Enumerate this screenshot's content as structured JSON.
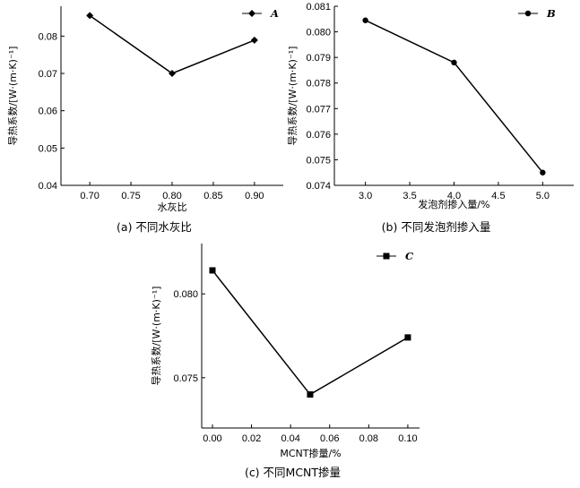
{
  "chart_data": [
    {
      "type": "line",
      "marker": "diamond",
      "x": [
        0.7,
        0.8,
        0.9
      ],
      "series": [
        {
          "name": "A",
          "values": [
            0.0855,
            0.07,
            0.0789
          ]
        }
      ],
      "xlabel": "水灰比",
      "ylabel": "导热系数/[W·(m·K)⁻¹]",
      "xticks": [
        "0.70",
        "0.75",
        "0.80",
        "0.85",
        "0.90"
      ],
      "yticks": [
        "0.04",
        "0.05",
        "0.06",
        "0.07",
        "0.08"
      ],
      "xlim": [
        0.665,
        0.935
      ],
      "ylim": [
        0.04,
        0.088
      ],
      "caption": "(a) 不同水灰比",
      "legend": "top-right"
    },
    {
      "type": "line",
      "marker": "circle",
      "x": [
        3.0,
        4.0,
        5.0
      ],
      "series": [
        {
          "name": "B",
          "values": [
            0.08045,
            0.0788,
            0.0745
          ]
        }
      ],
      "xlabel": "发泡剂掺入量/%",
      "ylabel": "导热系数/[W·(m·K)⁻¹]",
      "xticks": [
        "3.0",
        "3.5",
        "4.0",
        "4.5",
        "5.0"
      ],
      "yticks": [
        "0.074",
        "0.075",
        "0.076",
        "0.077",
        "0.078",
        "0.079",
        "0.080",
        "0.081"
      ],
      "xlim": [
        2.65,
        5.35
      ],
      "ylim": [
        0.074,
        0.081
      ],
      "caption": "(b) 不同发泡剂掺入量",
      "legend": "top-right"
    },
    {
      "type": "line",
      "marker": "square",
      "x": [
        0.0,
        0.05,
        0.1
      ],
      "series": [
        {
          "name": "C",
          "values": [
            0.0814,
            0.074,
            0.0774
          ]
        }
      ],
      "xlabel": "MCNT掺量/%",
      "ylabel": "导热系数/[W·(m·K)⁻¹]",
      "xticks": [
        "0.00",
        "0.02",
        "0.04",
        "0.06",
        "0.08",
        "0.10"
      ],
      "yticks": [
        "0.075",
        "0.080"
      ],
      "xlim": [
        -0.0055,
        0.106
      ],
      "ylim": [
        0.072,
        0.083
      ],
      "caption": "(c) 不同MCNT掺量",
      "legend": "top-right"
    }
  ]
}
